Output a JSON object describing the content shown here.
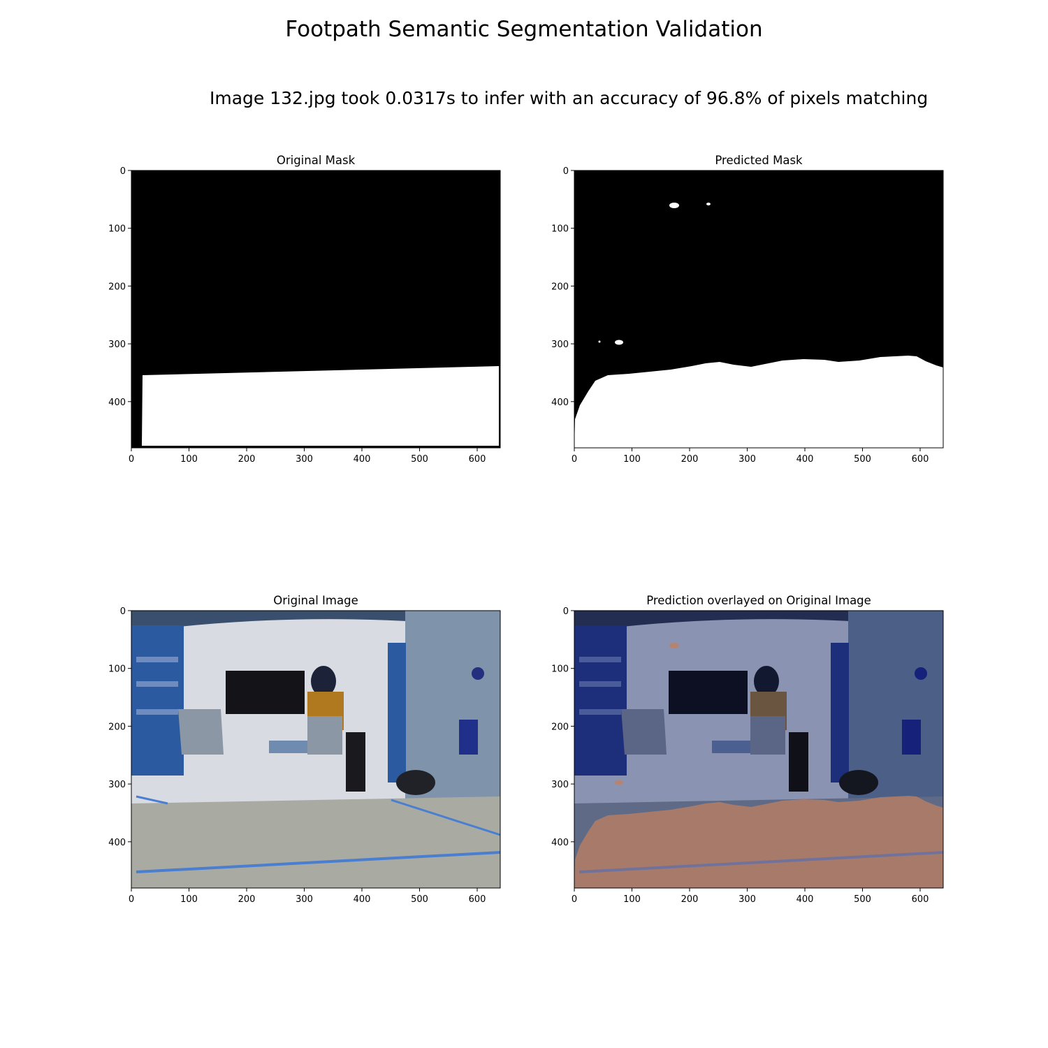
{
  "figure": {
    "title": "Footpath Semantic Segmentation Validation",
    "subtitle": "Image 132.jpg took 0.0317s to infer with an accuracy of 96.8% of pixels matching"
  },
  "panels": [
    {
      "id": "original-mask",
      "title": "Original Mask"
    },
    {
      "id": "predicted-mask",
      "title": "Predicted Mask"
    },
    {
      "id": "original-image",
      "title": "Original Image"
    },
    {
      "id": "overlay",
      "title": "Prediction overlayed on Original Image"
    }
  ],
  "axes": {
    "x_ticks": [
      "0",
      "100",
      "200",
      "300",
      "400",
      "500",
      "600"
    ],
    "y_ticks": [
      "0",
      "100",
      "200",
      "300",
      "400"
    ],
    "x_range": [
      0,
      640
    ],
    "y_range": [
      0,
      480
    ]
  },
  "colors": {
    "mask_background": "#000000",
    "mask_foreground": "#ffffff",
    "overlay_tint": "#c08060",
    "scene_wall": "#d8dce2",
    "scene_floor": "#a9aba3",
    "scene_shelf": "#2c5aa0"
  }
}
